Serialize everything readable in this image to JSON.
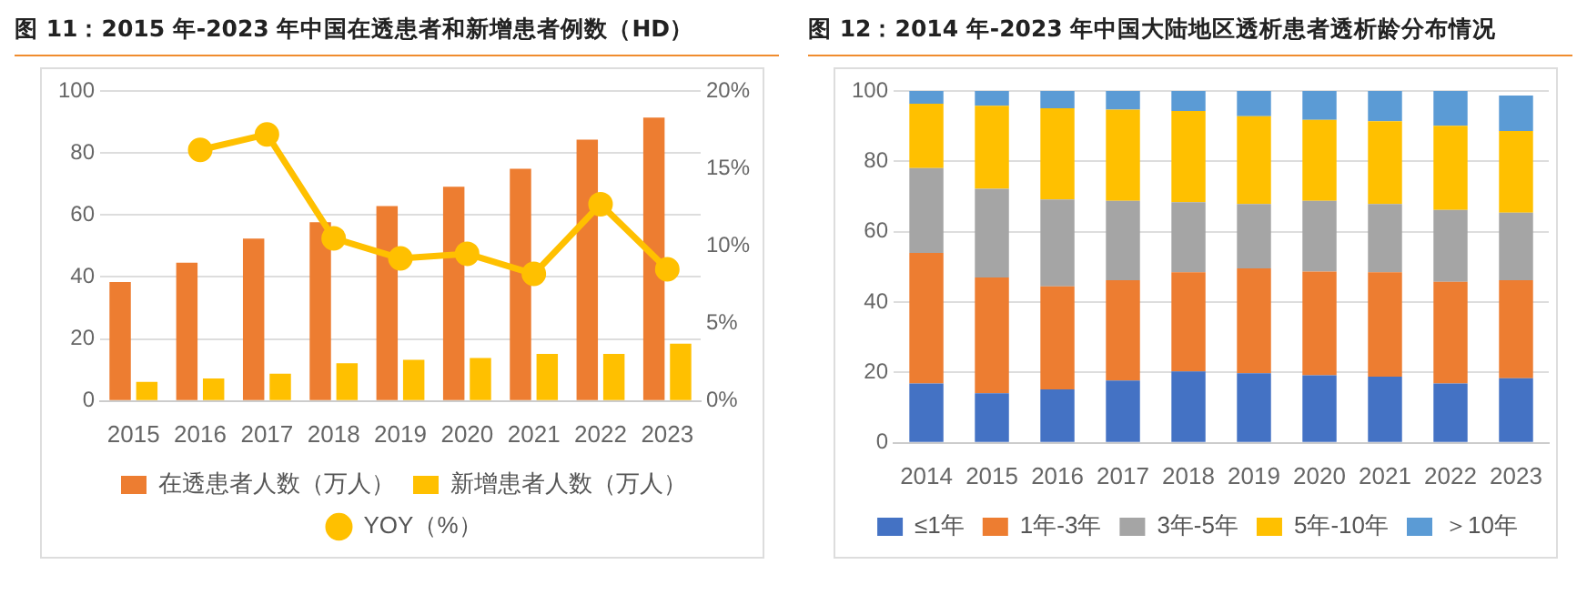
{
  "chart_data": [
    {
      "type": "bar",
      "title": "图 11：2015 年-2023 年中国在透患者和新增患者例数（HD）",
      "categories": [
        "2015",
        "2016",
        "2017",
        "2018",
        "2019",
        "2020",
        "2021",
        "2022",
        "2023"
      ],
      "series": [
        {
          "name": "在透患者人数（万人）",
          "color": "#ed7d31",
          "values": [
            38.4,
            44.6,
            52.4,
            57.7,
            62.9,
            69.1,
            74.9,
            84.3,
            91.4
          ]
        },
        {
          "name": "新增患者人数（万人）",
          "color": "#ffc000",
          "values": [
            6.2,
            7.3,
            8.8,
            12.2,
            13.3,
            13.9,
            15.2,
            15.2,
            18.5
          ]
        },
        {
          "name": "YOY（%）",
          "type": "line",
          "axis": "y2",
          "color": "#ffc000",
          "marker": "circle",
          "line_style": "solid",
          "values": [
            null,
            16.2,
            17.2,
            10.5,
            9.2,
            9.5,
            8.2,
            12.7,
            8.5
          ]
        }
      ],
      "ylim": [
        0,
        100
      ],
      "yticks": [
        0,
        20,
        40,
        60,
        80,
        100
      ],
      "y2lim": [
        0,
        20
      ],
      "y2ticks": [
        {
          "value": 0,
          "label": "0%"
        },
        {
          "value": 5,
          "label": "5%"
        },
        {
          "value": 10,
          "label": "10%"
        },
        {
          "value": 15,
          "label": "15%"
        },
        {
          "value": 20,
          "label": "20%"
        }
      ],
      "grid": "y",
      "legend": "bottom"
    },
    {
      "type": "bar",
      "title": "图 12：2014 年-2023 年中国大陆地区透析患者透析龄分布情况",
      "categories": [
        "2014",
        "2015",
        "2016",
        "2017",
        "2018",
        "2019",
        "2020",
        "2021",
        "2022",
        "2023"
      ],
      "stacked": true,
      "series": [
        {
          "name": "≤1年",
          "color": "#4472c4",
          "values": [
            16.9,
            14.1,
            15.2,
            17.7,
            20.3,
            19.8,
            19.2,
            18.8,
            16.9,
            18.4
          ]
        },
        {
          "name": "1年-3年",
          "color": "#ed7d31",
          "values": [
            37.1,
            32.9,
            29.3,
            28.5,
            28.2,
            29.8,
            29.5,
            29.7,
            28.9,
            27.8
          ]
        },
        {
          "name": "3年-5年",
          "color": "#a5a5a5",
          "values": [
            24.1,
            25.2,
            24.7,
            22.6,
            19.9,
            18.3,
            20.1,
            19.4,
            20.4,
            19.2
          ]
        },
        {
          "name": "5年-10年",
          "color": "#ffc000",
          "values": [
            18.3,
            23.6,
            25.9,
            25.9,
            25.9,
            24.9,
            23.0,
            23.5,
            23.9,
            23.2
          ]
        },
        {
          "name": "＞10年",
          "color": "#5b9bd5",
          "values": [
            3.6,
            4.2,
            4.9,
            5.3,
            5.7,
            7.2,
            8.2,
            8.6,
            9.9,
            10.1
          ]
        }
      ],
      "ylim": [
        0,
        100
      ],
      "yticks": [
        0,
        20,
        40,
        60,
        80,
        100
      ],
      "grid": "y",
      "legend": "bottom"
    }
  ]
}
